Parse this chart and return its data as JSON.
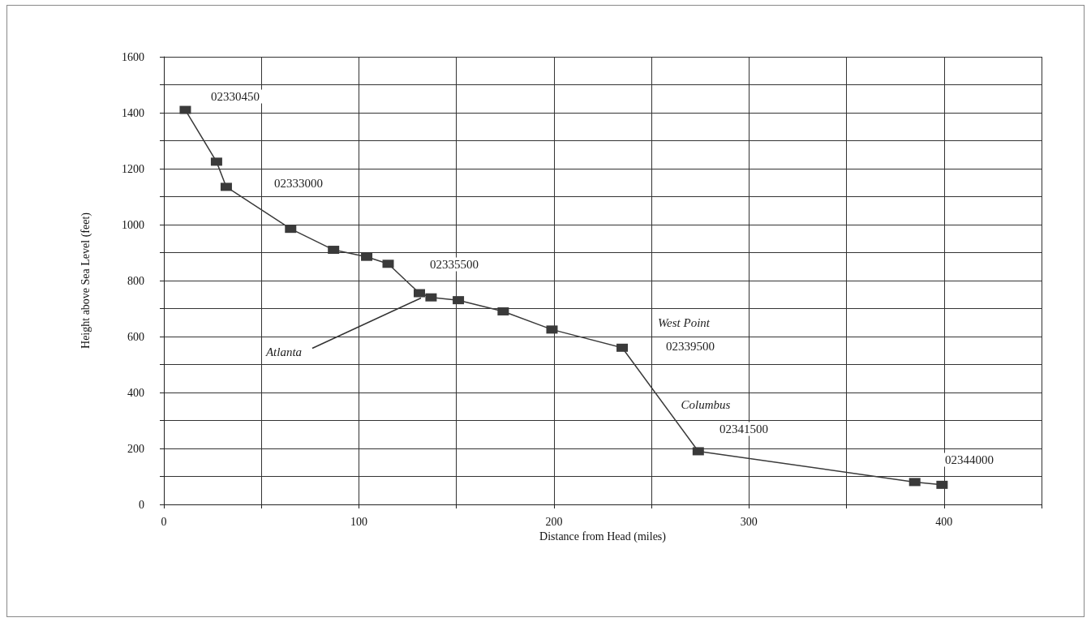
{
  "chart_data": {
    "type": "line",
    "xlabel": "Distance from Head (miles)",
    "ylabel": "Height above Sea Level (feet)",
    "x": [
      11,
      27,
      32,
      65,
      87,
      104,
      115,
      131,
      137,
      151,
      174,
      199,
      235,
      274,
      385,
      399
    ],
    "series": [
      {
        "color": "#3a3a3a",
        "values": [
          1410,
          1225,
          1135,
          985,
          910,
          885,
          860,
          755,
          740,
          730,
          690,
          625,
          560,
          190,
          80,
          70
        ]
      }
    ],
    "xlim": [
      0,
      450
    ],
    "xticks": [
      0,
      {
        "value": 50,
        "label": null
      },
      100,
      {
        "value": 150,
        "label": null
      },
      200,
      {
        "value": 250,
        "label": null
      },
      300,
      {
        "value": 350,
        "label": null
      },
      400,
      {
        "value": 450,
        "label": null
      }
    ],
    "ylim": [
      0,
      1600
    ],
    "yticks": [
      0,
      {
        "value": 100,
        "label": null
      },
      200,
      {
        "value": 300,
        "label": null
      },
      400,
      {
        "value": 500,
        "label": null
      },
      600,
      {
        "value": 700,
        "label": null
      },
      800,
      {
        "value": 900,
        "label": null
      },
      1000,
      {
        "value": 1100,
        "label": null
      },
      1200,
      {
        "value": 1300,
        "label": null
      },
      1400,
      {
        "value": 1500,
        "label": null
      },
      1600
    ],
    "grid": true,
    "marker": "square",
    "line_style": "solid",
    "annotations": [
      "02330450",
      "02333000",
      "02335500",
      {
        "text": "Atlanta",
        "x": 131,
        "y": 755
      },
      "West Point",
      "02339500",
      "Columbus",
      "02341500",
      "02344000"
    ]
  }
}
